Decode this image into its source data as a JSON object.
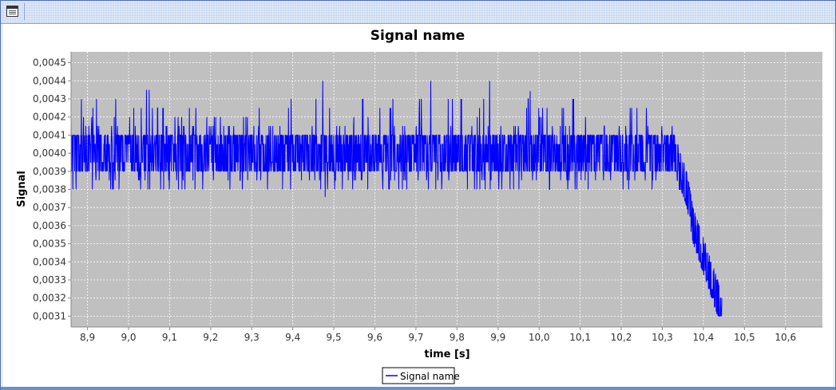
{
  "window": {
    "title": ""
  },
  "colors": {
    "plot_background": "#c0c0c0",
    "series": "#0000ff",
    "grid": "#ffffff",
    "window_frame": "#6b8fcf"
  },
  "chart_data": {
    "type": "line",
    "title": "Signal name",
    "xlabel": "time [s]",
    "ylabel": "Signal",
    "xlim": [
      8.86,
      10.69
    ],
    "ylim": [
      0.00304,
      0.00456
    ],
    "x_ticks": [
      "8,9",
      "9,0",
      "9,1",
      "9,2",
      "9,3",
      "9,4",
      "9,5",
      "9,6",
      "9,7",
      "9,8",
      "9,9",
      "10,0",
      "10,1",
      "10,2",
      "10,3",
      "10,4",
      "10,5",
      "10,6"
    ],
    "x_tick_values": [
      8.9,
      9.0,
      9.1,
      9.2,
      9.3,
      9.4,
      9.5,
      9.6,
      9.7,
      9.8,
      9.9,
      10.0,
      10.1,
      10.2,
      10.3,
      10.4,
      10.5,
      10.6
    ],
    "y_ticks": [
      "0,0031",
      "0,0032",
      "0,0033",
      "0,0034",
      "0,0035",
      "0,0036",
      "0,0037",
      "0,0038",
      "0,0039",
      "0,0040",
      "0,0041",
      "0,0042",
      "0,0043",
      "0,0044",
      "0,0045"
    ],
    "y_tick_values": [
      0.0031,
      0.0032,
      0.0033,
      0.0034,
      0.0035,
      0.0036,
      0.0037,
      0.0038,
      0.0039,
      0.004,
      0.0041,
      0.0042,
      0.0043,
      0.0044,
      0.0045
    ],
    "grid": true,
    "legend": {
      "position": "bottom-center",
      "entries": [
        "Signal name"
      ]
    },
    "series": [
      {
        "name": "Signal name",
        "color": "#0000ff",
        "x": [
          8.86,
          8.9,
          8.95,
          9.0,
          9.05,
          9.1,
          9.15,
          9.2,
          9.25,
          9.3,
          9.35,
          9.4,
          9.45,
          9.475,
          9.5,
          9.55,
          9.6,
          9.65,
          9.7,
          9.75,
          9.8,
          9.85,
          9.9,
          9.95,
          10.0,
          10.05,
          10.1,
          10.15,
          10.2,
          10.25,
          10.3,
          10.33,
          10.345,
          10.36,
          10.375,
          10.39,
          10.405,
          10.42,
          10.435,
          10.445
        ],
        "y": [
          0.004,
          0.004,
          0.004,
          0.004,
          0.004,
          0.004,
          0.004,
          0.004,
          0.004,
          0.004,
          0.004,
          0.004,
          0.004,
          0.004,
          0.004,
          0.004,
          0.004,
          0.004,
          0.004,
          0.004,
          0.004,
          0.004,
          0.004,
          0.004,
          0.004,
          0.004,
          0.004,
          0.004,
          0.004,
          0.004,
          0.004,
          0.004,
          0.0039,
          0.0038,
          0.0036,
          0.0035,
          0.0034,
          0.0033,
          0.0032,
          0.0031
        ],
        "noise_band": [
          0.0039,
          0.0041
        ],
        "spike_max": [
          0.0043,
          0.0043,
          0.0043,
          0.0043,
          0.0044,
          0.0042,
          0.0043,
          0.0042,
          0.0042,
          0.0043,
          0.0044,
          0.0043,
          0.0044,
          0.0044,
          0.0043,
          0.0043,
          0.0043,
          0.0043,
          0.0043,
          0.0045,
          0.0043,
          0.0043,
          0.0045,
          0.0044,
          0.0043,
          0.0043,
          0.0043,
          0.0043,
          0.0043,
          0.0043,
          0.0044,
          0.0041,
          0.004,
          0.0039,
          0.0037,
          0.0036,
          0.0035,
          0.0034,
          0.0033,
          0.0032
        ],
        "spike_min": [
          0.0038,
          0.0038,
          0.0038,
          0.0038,
          0.0038,
          0.0038,
          0.0038,
          0.0038,
          0.0038,
          0.0038,
          0.0038,
          0.0038,
          0.0038,
          0.00375,
          0.0038,
          0.0038,
          0.0038,
          0.0038,
          0.0038,
          0.0038,
          0.0038,
          0.0038,
          0.0038,
          0.0038,
          0.00375,
          0.0038,
          0.0038,
          0.0038,
          0.0038,
          0.0038,
          0.0038,
          0.0038,
          0.0038,
          0.0037,
          0.0035,
          0.0034,
          0.0033,
          0.0032,
          0.0031,
          0.0031
        ]
      }
    ]
  }
}
